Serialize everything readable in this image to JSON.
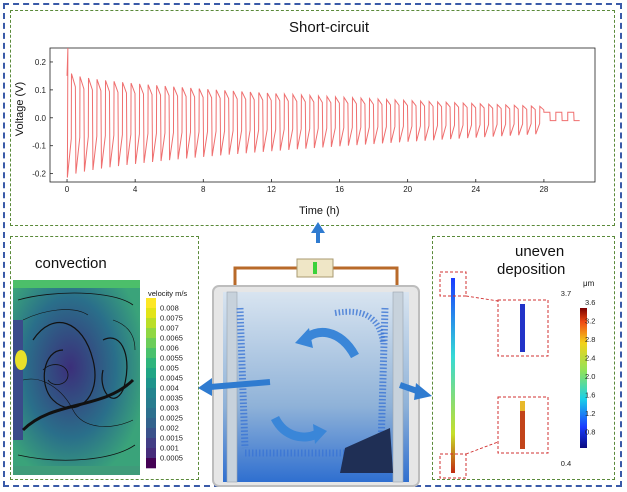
{
  "panels": {
    "top": {
      "title": "Short-circuit"
    },
    "convection": {
      "title": "convection",
      "colorbar_label": "velocity m/s",
      "colorbar_ticks": [
        "0.008",
        "0.0075",
        "0.007",
        "0.0065",
        "0.006",
        "0.0055",
        "0.005",
        "0.0045",
        "0.004",
        "0.0035",
        "0.003",
        "0.0025",
        "0.002",
        "0.0015",
        "0.001",
        "0.0005"
      ]
    },
    "deposition": {
      "title_line1": "uneven",
      "title_line2": "deposition",
      "unit": "μm",
      "colorbar_ticks": [
        "3.7",
        "3.6",
        "3.2",
        "2.8",
        "2.4",
        "2.0",
        "1.6",
        "1.2",
        "0.8",
        "0.4"
      ]
    }
  },
  "chart_data": {
    "type": "line",
    "xlabel": "Time (h)",
    "ylabel": "Voltage (V)",
    "xlim": [
      -1,
      31
    ],
    "ylim": [
      -0.23,
      0.25
    ],
    "xticks": [
      0,
      4,
      8,
      12,
      16,
      20,
      24,
      28
    ],
    "yticks": [
      -0.2,
      -0.1,
      0.0,
      0.1,
      0.2
    ],
    "line_color": "#ef6f6f",
    "cycle_period_h": 0.5,
    "series": [
      {
        "x_start": 0,
        "x_end": 28,
        "amplitude_start": 0.22,
        "amplitude_end": 0.055,
        "after_short_circuit": {
          "x_end": 30,
          "upper": 0.02,
          "lower": -0.01
        }
      }
    ]
  },
  "colors": {
    "outer_border": "#3a5aa8",
    "panel_border": "#5a8a3a",
    "arrow": "#2f7bd0"
  }
}
